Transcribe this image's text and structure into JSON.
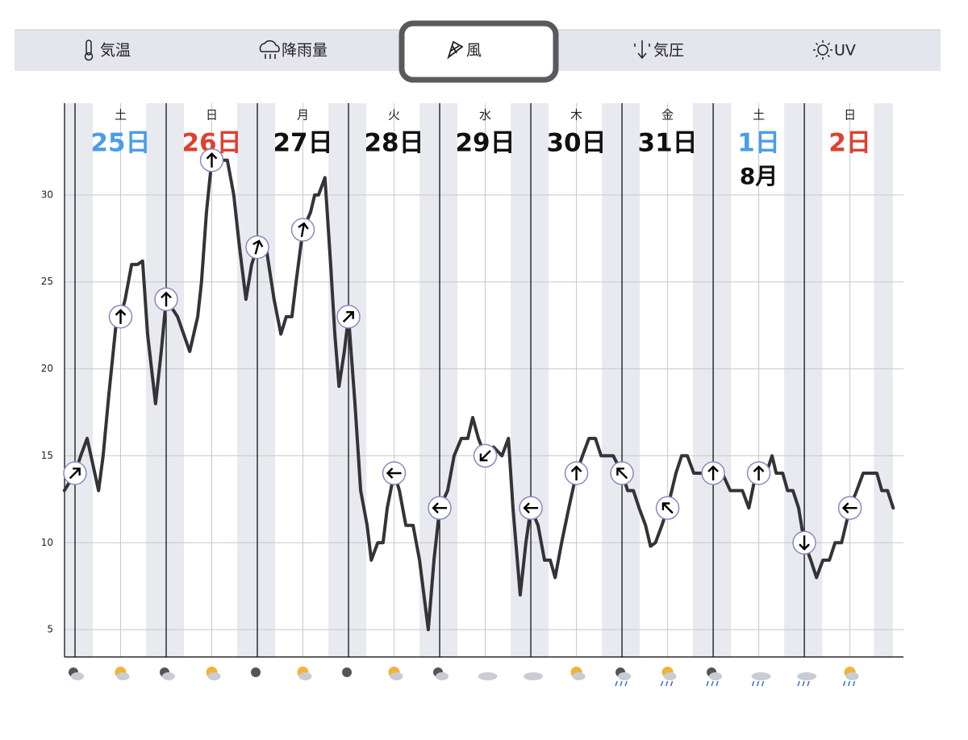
{
  "tabs": [
    "気温",
    "降雨量",
    "風",
    "気圧",
    "UV"
  ],
  "selected_tab": 2,
  "chart_data": {
    "type": "line",
    "days": [
      {
        "weekday": "土",
        "date": "25日",
        "color": "#4a9de8",
        "x": 0
      },
      {
        "weekday": "日",
        "date": "26日",
        "color": "#e0402f",
        "x": 24
      },
      {
        "weekday": "月",
        "date": "27日",
        "color": "#111111",
        "x": 48
      },
      {
        "weekday": "火",
        "date": "28日",
        "color": "#111111",
        "x": 72
      },
      {
        "weekday": "水",
        "date": "29日",
        "color": "#111111",
        "x": 96
      },
      {
        "weekday": "木",
        "date": "30日",
        "color": "#111111",
        "x": 120
      },
      {
        "weekday": "金",
        "date": "31日",
        "color": "#111111",
        "x": 144
      },
      {
        "weekday": "土",
        "date": "1日",
        "month": "8月",
        "color": "#4a9de8",
        "x": 168
      },
      {
        "weekday": "日",
        "date": "2日",
        "color": "#e0402f",
        "x": 192
      }
    ],
    "x": [
      -2.8,
      0,
      1.5,
      3.2,
      4.7,
      6.2,
      7.4,
      8.9,
      11.0,
      12,
      13.2,
      14.9,
      16.4,
      17.8,
      19.1,
      21.2,
      22.7,
      24,
      27.0,
      30.2,
      32.3,
      33.3,
      34.6,
      36,
      37.6,
      40.1,
      41.8,
      43.3,
      45.0,
      46.5,
      48,
      50.3,
      52.4,
      54.2,
      55.6,
      57.1,
      58.2,
      60,
      62.0,
      63.1,
      64.1,
      65.8,
      67.3,
      68.4,
      69.5,
      70.9,
      72,
      73.7,
      75.2,
      76.9,
      78.0,
      79.7,
      81.1,
      82.2,
      84,
      85.4,
      87.1,
      89.0,
      90.7,
      93.0,
      94.5,
      96,
      98.1,
      99.8,
      101.7,
      103.4,
      104.7,
      106.2,
      108,
      110.2,
      112.4,
      114.1,
      115.3,
      117.2,
      118.7,
      120,
      121.9,
      123.6,
      125.1,
      126.4,
      128.1,
      130.0,
      132,
      133.6,
      135.3,
      137.0,
      138.5,
      140.0,
      141.7,
      144,
      145.5,
      147.0,
      148.5,
      150.2,
      151.5,
      152.8,
      154.5,
      156,
      158.2,
      159.7,
      161.2,
      162.9,
      164.6,
      166.1,
      168,
      170.4,
      172.5,
      174.0,
      175.7,
      177.4,
      178.8,
      180,
      182.0,
      183.5,
      184.6,
      186.3,
      187.6,
      189.0,
      190.5,
      192,
      193.7,
      195.2,
      196.9,
      198.6,
      200.1,
      201.8,
      204,
      205.8,
      207.5,
      209.2,
      211.1,
      212.4,
      213.9,
      215.4
    ],
    "series": [
      {
        "color": "#333338",
        "values": [
          13,
          14,
          15,
          16,
          14.5,
          13,
          15,
          18.5,
          23,
          23,
          24,
          26,
          26,
          26.2,
          22,
          18,
          21,
          24,
          23,
          21,
          23,
          25,
          29,
          32,
          32,
          32,
          30,
          27,
          24,
          26,
          27,
          27,
          24,
          22,
          23,
          23,
          25,
          28,
          29,
          30,
          30,
          31,
          26,
          22,
          19,
          21,
          23,
          18,
          13,
          11,
          9,
          10,
          10,
          12,
          14,
          13,
          11,
          11,
          9,
          5,
          9,
          12,
          13,
          15,
          16,
          16,
          17.2,
          16,
          15,
          15.5,
          15,
          16,
          12,
          7,
          10,
          12,
          11,
          9,
          9,
          8,
          10,
          12,
          14,
          15,
          16,
          16,
          15,
          15,
          15,
          14,
          13,
          13,
          12,
          11,
          9.8,
          10,
          11,
          12,
          14,
          15,
          15,
          14,
          14,
          14,
          14,
          14,
          13,
          13,
          13,
          12,
          13.5,
          14,
          14,
          15,
          14,
          14,
          13,
          13,
          12,
          10,
          9,
          8,
          9,
          9,
          10,
          10,
          12,
          13,
          14,
          14,
          14,
          13,
          13,
          12
        ]
      }
    ],
    "arrows": [
      {
        "x": 0,
        "value": 14,
        "angle": 45
      },
      {
        "x": 12,
        "value": 23,
        "angle": 0
      },
      {
        "x": 24,
        "value": 24,
        "angle": 0
      },
      {
        "x": 36,
        "value": 32,
        "angle": 0
      },
      {
        "x": 48,
        "value": 27,
        "angle": 15
      },
      {
        "x": 60,
        "value": 28,
        "angle": 10
      },
      {
        "x": 72,
        "value": 23,
        "angle": 45
      },
      {
        "x": 84,
        "value": 14,
        "angle": 270
      },
      {
        "x": 96,
        "value": 12,
        "angle": 270
      },
      {
        "x": 108,
        "value": 15,
        "angle": 225
      },
      {
        "x": 120,
        "value": 12,
        "angle": 270
      },
      {
        "x": 132,
        "value": 14,
        "angle": 0
      },
      {
        "x": 144,
        "value": 14,
        "angle": 315
      },
      {
        "x": 156,
        "value": 12,
        "angle": 315
      },
      {
        "x": 168,
        "value": 14,
        "angle": 0
      },
      {
        "x": 180,
        "value": 14,
        "angle": 0
      },
      {
        "x": 192,
        "value": 10,
        "angle": 180
      },
      {
        "x": 204,
        "value": 12,
        "angle": 270
      }
    ],
    "xlim": [
      -2.76,
      218.1
    ],
    "ylim": [
      3.43,
      35.28
    ],
    "yticks": [
      5,
      10,
      15,
      20,
      25,
      30
    ],
    "grid": true
  }
}
